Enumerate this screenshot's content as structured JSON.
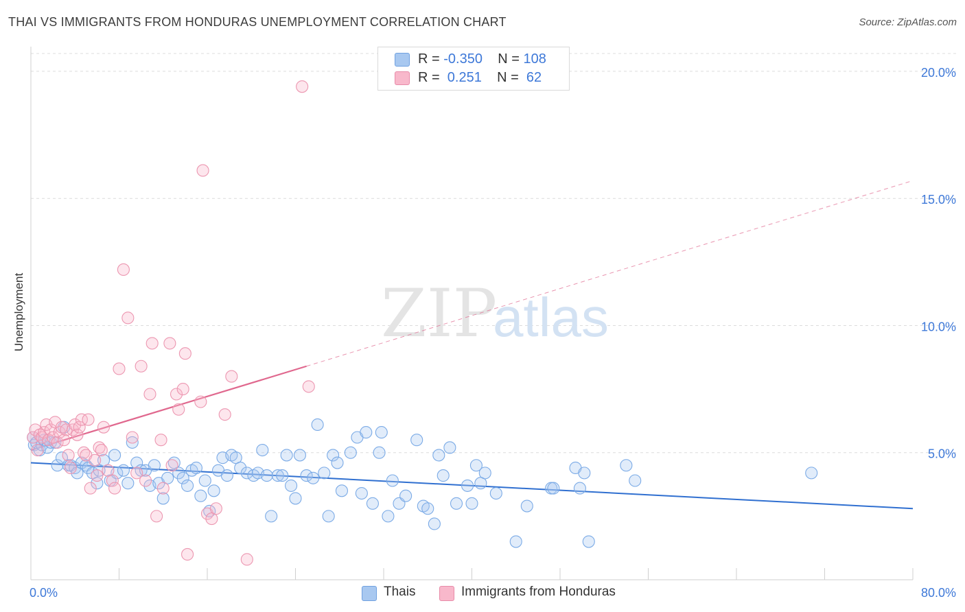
{
  "title": "THAI VS IMMIGRANTS FROM HONDURAS UNEMPLOYMENT CORRELATION CHART",
  "source": "Source: ZipAtlas.com",
  "watermark": {
    "zip": "ZIP",
    "atlas": "atlas"
  },
  "legend": {
    "rows": [
      {
        "r_label": "R = ",
        "r_value": "-0.350",
        "n_label": "N = ",
        "n_value": "108",
        "color": "#a8c8f0",
        "border": "#6fa0e0"
      },
      {
        "r_label": "R = ",
        "r_value": " 0.251",
        "n_label": "N = ",
        "n_value": " 62",
        "color": "#f8b8cb",
        "border": "#e88aa8"
      }
    ]
  },
  "bottom_legend": [
    {
      "label": "Thais",
      "color": "#a8c8f0",
      "border": "#6fa0e0"
    },
    {
      "label": "Immigrants from Honduras",
      "color": "#f8b8cb",
      "border": "#e88aa8"
    }
  ],
  "chart_data": {
    "type": "scatter",
    "ylabel": "Unemployment",
    "xlabel": "",
    "xlim": [
      0,
      80
    ],
    "ylim": [
      0,
      20.7
    ],
    "x_tick_labels": [
      {
        "value": 0,
        "label": "0.0%"
      },
      {
        "value": 80,
        "label": "80.0%"
      }
    ],
    "y_tick_labels": [
      {
        "value": 5,
        "label": "5.0%"
      },
      {
        "value": 10,
        "label": "10.0%"
      },
      {
        "value": 15,
        "label": "15.0%"
      },
      {
        "value": 20,
        "label": "20.0%"
      }
    ],
    "grid": true,
    "series": [
      {
        "name": "Thais",
        "color": "#7aaae6",
        "fill": "rgba(168,200,240,0.35)",
        "trend": {
          "x0": 0,
          "y0": 4.6,
          "x1": 80,
          "y1": 2.8,
          "color": "#2f6fd0",
          "dashed_from": null
        },
        "points": [
          [
            0.2,
            5.6
          ],
          [
            0.3,
            5.3
          ],
          [
            0.5,
            5.4
          ],
          [
            0.8,
            5.1
          ],
          [
            1.0,
            5.3
          ],
          [
            1.2,
            5.5
          ],
          [
            1.5,
            5.2
          ],
          [
            1.8,
            5.4
          ],
          [
            2.2,
            5.4
          ],
          [
            2.4,
            4.5
          ],
          [
            2.8,
            4.8
          ],
          [
            3.0,
            6.0
          ],
          [
            3.4,
            4.5
          ],
          [
            3.6,
            4.5
          ],
          [
            4.0,
            4.4
          ],
          [
            4.2,
            4.2
          ],
          [
            4.6,
            4.6
          ],
          [
            5.0,
            4.5
          ],
          [
            5.2,
            4.4
          ],
          [
            5.6,
            4.2
          ],
          [
            6.0,
            3.8
          ],
          [
            6.2,
            4.3
          ],
          [
            6.6,
            4.7
          ],
          [
            7.2,
            3.9
          ],
          [
            7.6,
            4.9
          ],
          [
            7.8,
            4.2
          ],
          [
            8.4,
            4.3
          ],
          [
            8.8,
            3.8
          ],
          [
            9.2,
            5.4
          ],
          [
            9.6,
            4.6
          ],
          [
            10.0,
            4.3
          ],
          [
            10.4,
            4.3
          ],
          [
            10.8,
            3.7
          ],
          [
            11.2,
            4.5
          ],
          [
            11.6,
            3.8
          ],
          [
            12.0,
            3.2
          ],
          [
            12.4,
            4.0
          ],
          [
            13.0,
            4.6
          ],
          [
            13.4,
            4.2
          ],
          [
            13.8,
            4.0
          ],
          [
            14.2,
            3.7
          ],
          [
            14.6,
            4.3
          ],
          [
            15.0,
            4.4
          ],
          [
            15.4,
            3.3
          ],
          [
            15.8,
            3.9
          ],
          [
            16.2,
            2.7
          ],
          [
            16.6,
            3.5
          ],
          [
            17.0,
            4.3
          ],
          [
            17.4,
            4.8
          ],
          [
            17.8,
            4.1
          ],
          [
            18.2,
            4.9
          ],
          [
            18.6,
            4.8
          ],
          [
            19.0,
            4.4
          ],
          [
            19.6,
            4.2
          ],
          [
            20.2,
            4.1
          ],
          [
            20.6,
            4.2
          ],
          [
            21.0,
            5.1
          ],
          [
            21.4,
            4.1
          ],
          [
            21.8,
            2.5
          ],
          [
            22.4,
            4.1
          ],
          [
            22.8,
            4.1
          ],
          [
            23.2,
            4.9
          ],
          [
            23.6,
            3.7
          ],
          [
            24.0,
            3.2
          ],
          [
            24.4,
            4.9
          ],
          [
            25.0,
            4.1
          ],
          [
            25.6,
            4.0
          ],
          [
            26.0,
            6.1
          ],
          [
            26.6,
            4.2
          ],
          [
            27.0,
            2.5
          ],
          [
            27.4,
            4.9
          ],
          [
            27.8,
            4.6
          ],
          [
            28.2,
            3.5
          ],
          [
            29.0,
            5.0
          ],
          [
            29.6,
            5.6
          ],
          [
            30.0,
            3.4
          ],
          [
            30.4,
            5.8
          ],
          [
            31.0,
            3.0
          ],
          [
            31.6,
            5.0
          ],
          [
            31.8,
            5.8
          ],
          [
            32.4,
            2.5
          ],
          [
            32.8,
            3.9
          ],
          [
            33.4,
            3.0
          ],
          [
            34.0,
            3.3
          ],
          [
            35.0,
            5.5
          ],
          [
            35.6,
            2.9
          ],
          [
            36.0,
            2.8
          ],
          [
            36.6,
            2.2
          ],
          [
            37.0,
            4.9
          ],
          [
            37.4,
            4.1
          ],
          [
            38.0,
            5.2
          ],
          [
            38.6,
            3.0
          ],
          [
            39.6,
            3.7
          ],
          [
            40.0,
            3.0
          ],
          [
            40.4,
            4.5
          ],
          [
            40.8,
            3.8
          ],
          [
            41.2,
            4.2
          ],
          [
            42.2,
            3.4
          ],
          [
            44.0,
            1.5
          ],
          [
            45.0,
            2.9
          ],
          [
            47.2,
            3.6
          ],
          [
            47.4,
            3.6
          ],
          [
            49.4,
            4.4
          ],
          [
            49.8,
            3.6
          ],
          [
            50.2,
            4.2
          ],
          [
            50.6,
            1.5
          ],
          [
            54.0,
            4.5
          ],
          [
            54.8,
            3.9
          ],
          [
            70.8,
            4.2
          ]
        ]
      },
      {
        "name": "Immigrants from Honduras",
        "color": "#ec96b0",
        "fill": "rgba(248,184,203,0.35)",
        "trend": {
          "x0": 0,
          "y0": 5.1,
          "x1": 25,
          "y1": 8.4,
          "x_end": 80,
          "y_end": 15.7,
          "color": "#e0688e"
        },
        "points": [
          [
            0.2,
            5.6
          ],
          [
            0.4,
            5.9
          ],
          [
            0.6,
            5.1
          ],
          [
            0.8,
            5.7
          ],
          [
            1.0,
            5.6
          ],
          [
            1.2,
            5.8
          ],
          [
            1.4,
            6.1
          ],
          [
            1.6,
            5.5
          ],
          [
            1.8,
            5.9
          ],
          [
            2.0,
            5.6
          ],
          [
            2.2,
            6.2
          ],
          [
            2.4,
            5.4
          ],
          [
            2.6,
            5.8
          ],
          [
            2.8,
            6.0
          ],
          [
            3.0,
            5.5
          ],
          [
            3.2,
            5.9
          ],
          [
            3.4,
            4.9
          ],
          [
            3.6,
            4.4
          ],
          [
            3.8,
            5.9
          ],
          [
            4.0,
            6.1
          ],
          [
            4.2,
            5.7
          ],
          [
            4.4,
            6.0
          ],
          [
            4.6,
            6.3
          ],
          [
            4.8,
            5.0
          ],
          [
            5.0,
            4.9
          ],
          [
            5.2,
            6.3
          ],
          [
            5.4,
            3.6
          ],
          [
            5.8,
            4.7
          ],
          [
            6.0,
            4.1
          ],
          [
            6.2,
            5.2
          ],
          [
            6.4,
            5.1
          ],
          [
            6.6,
            6.0
          ],
          [
            7.0,
            4.3
          ],
          [
            7.4,
            3.9
          ],
          [
            7.6,
            3.6
          ],
          [
            8.0,
            8.3
          ],
          [
            8.4,
            12.2
          ],
          [
            8.8,
            10.3
          ],
          [
            9.2,
            5.6
          ],
          [
            9.6,
            4.2
          ],
          [
            10.0,
            8.4
          ],
          [
            10.4,
            3.9
          ],
          [
            10.8,
            7.3
          ],
          [
            11.0,
            9.3
          ],
          [
            11.4,
            2.5
          ],
          [
            11.8,
            5.5
          ],
          [
            12.0,
            3.6
          ],
          [
            12.6,
            9.3
          ],
          [
            12.8,
            4.5
          ],
          [
            13.2,
            7.3
          ],
          [
            13.4,
            6.7
          ],
          [
            13.8,
            7.5
          ],
          [
            14.0,
            8.9
          ],
          [
            14.2,
            1.0
          ],
          [
            15.4,
            7.0
          ],
          [
            15.6,
            16.1
          ],
          [
            16.0,
            2.6
          ],
          [
            16.4,
            2.4
          ],
          [
            16.8,
            2.8
          ],
          [
            17.6,
            6.5
          ],
          [
            18.2,
            8.0
          ],
          [
            19.6,
            0.8
          ],
          [
            25.2,
            7.6
          ],
          [
            24.6,
            19.4
          ]
        ]
      }
    ]
  }
}
